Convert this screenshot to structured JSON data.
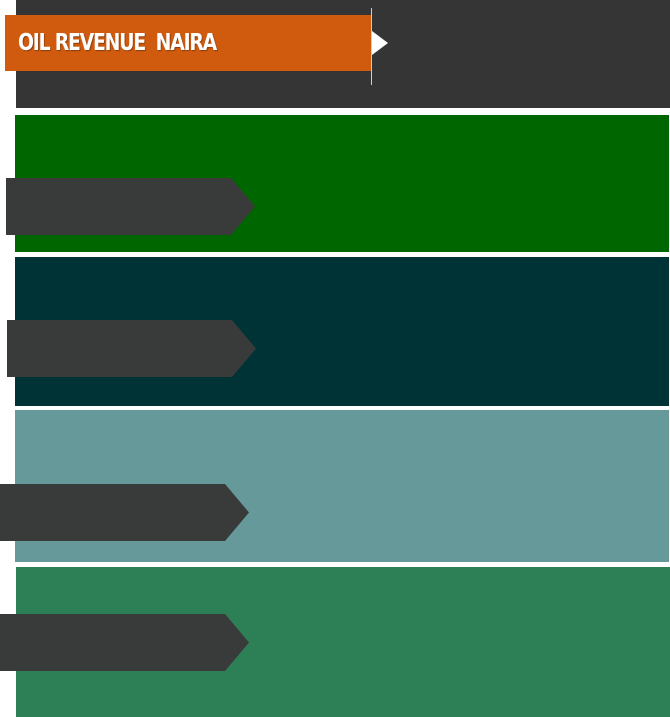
{
  "header": {
    "title": "OIL REVENUE  NAIRA"
  },
  "colors": {
    "header_panel": "#353535",
    "title_banner": "#d05b0f",
    "panel_1": "#006600",
    "panel_2": "#003336",
    "panel_3": "#669999",
    "panel_4": "#2d8055",
    "arrow_tab": "#393a3a",
    "pointer": "#ffffff"
  },
  "icons": {
    "title_pointer": "triangle-right-icon"
  }
}
